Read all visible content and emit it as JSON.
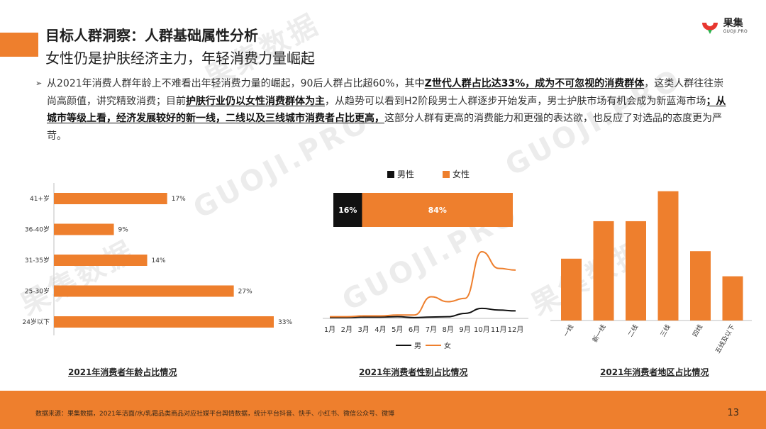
{
  "header": {
    "title": "目标人群洞察：人群基础属性分析",
    "subtitle": "女性仍是护肤经济主力，年轻消费力量崛起"
  },
  "logo": {
    "cn": "果集",
    "en": "GUOJI.PRO"
  },
  "watermark": {
    "cn": "果集数据",
    "en": "GUOJI.PRO"
  },
  "paragraph": {
    "bullet": "➢",
    "seg1": "从2021年消费人群年龄上不难看出年轻消费力量的崛起，90后人群占比超60%，其中",
    "bold1": "Z世代人群占比达33%，成为不可忽视的消费群体",
    "seg2": "，这类人群往往崇尚高颜值，讲究精致消费；目前",
    "bold2": "护肤行业仍以女性消费群体为主",
    "seg3": "，从趋势可以看到H2阶段男士人群逐步开始发声，男士护肤市场有机会成为新蓝海市场",
    "bold3": "；从城市等级上看，经济发展较好的新一线，二线以及三线城市消费者占比更高，",
    "seg4": "这部分人群有更高的消费能力和更强的表达欲，也反应了对选品的态度更为严苛。"
  },
  "charts": {
    "age": {
      "caption": "2021年消费者年龄占比情况",
      "color": "#ee7f2d"
    },
    "gender": {
      "caption": "2021年消费者性别占比情况",
      "legend_male": "男性",
      "legend_female": "女性",
      "line_legend_male": "男",
      "line_legend_female": "女",
      "male_color": "#111111",
      "female_color": "#ee7f2d"
    },
    "region": {
      "caption": "2021年消费者地区占比情况",
      "color": "#ee7f2d"
    }
  },
  "chart_data": [
    {
      "type": "bar",
      "orientation": "horizontal",
      "categories": [
        "41+岁",
        "36-40岁",
        "31-35岁",
        "25-30岁",
        "24岁以下"
      ],
      "values": [
        17,
        9,
        14,
        27,
        33
      ],
      "labels": [
        "17%",
        "9%",
        "14%",
        "27%",
        "33%"
      ],
      "title": "2021年消费者年龄占比情况"
    },
    {
      "type": "bar",
      "stacked": true,
      "orientation": "horizontal",
      "series": [
        {
          "name": "男性",
          "values": [
            16
          ],
          "label": "16%"
        },
        {
          "name": "女性",
          "values": [
            84
          ],
          "label": "84%"
        }
      ],
      "title": "2021年消费者性别占比情况"
    },
    {
      "type": "line",
      "x": [
        "1月",
        "2月",
        "3月",
        "4月",
        "5月",
        "6月",
        "7月",
        "8月",
        "9月",
        "10月",
        "11月",
        "12月"
      ],
      "series": [
        {
          "name": "男",
          "values": [
            0.5,
            0.5,
            0.8,
            0.8,
            1.0,
            0.5,
            0.8,
            1.0,
            3.0,
            6.0,
            5.0,
            4.5
          ]
        },
        {
          "name": "女",
          "values": [
            1.0,
            1.0,
            1.5,
            1.5,
            2.0,
            2.0,
            13.0,
            10.0,
            12.0,
            40.0,
            30.0,
            29.0
          ]
        }
      ],
      "title": "2021年消费者性别占比情况"
    },
    {
      "type": "bar",
      "categories": [
        "一线",
        "新一线",
        "二线",
        "三线",
        "四线",
        "五线及以下"
      ],
      "values": [
        16.5,
        26.5,
        26.5,
        34.5,
        18.5,
        11.8
      ],
      "title": "2021年消费者地区占比情况"
    }
  ],
  "footer": {
    "note": "数据来源：果集数据，2021年洁面/水/乳霜品类商品对应社媒平台舆情数据，统计平台抖音、快手、小红书、微信公众号、微博",
    "page": "13"
  }
}
